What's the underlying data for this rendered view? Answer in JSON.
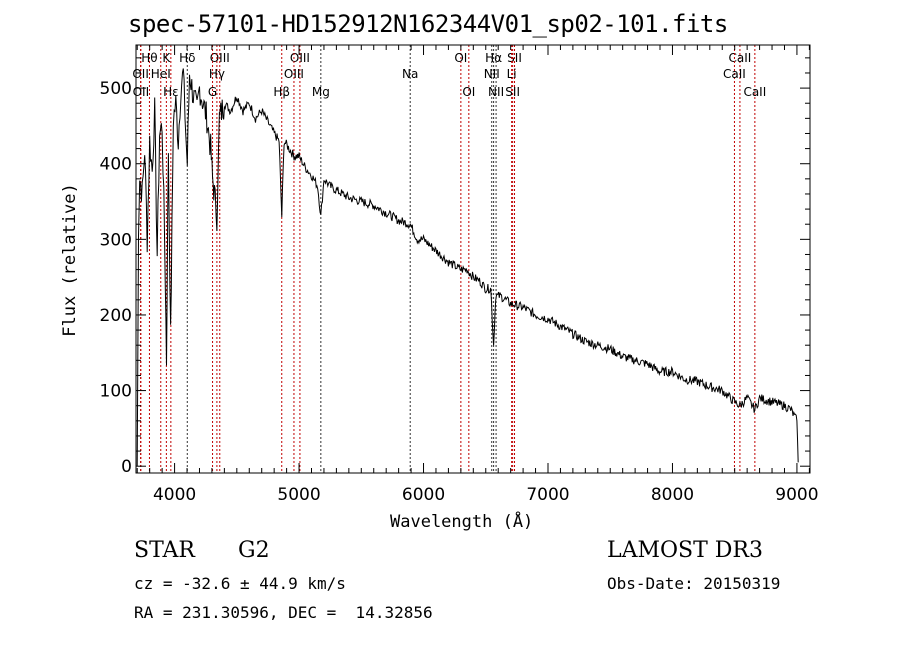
{
  "chart_data": {
    "type": "line",
    "title": "spec-57101-HD152912N162344V01_sp02-101.fits",
    "xlabel": "Wavelength (Å)",
    "ylabel": "Flux (relative)",
    "xlim": [
      3690,
      9105
    ],
    "ylim": [
      -9,
      557
    ],
    "xticks": [
      4000,
      5000,
      6000,
      7000,
      8000,
      9000
    ],
    "yticks": [
      0,
      100,
      200,
      300,
      400,
      500
    ],
    "grid": false,
    "series": [
      {
        "name": "flux",
        "x": [
          3700,
          3710,
          3720,
          3740,
          3760,
          3780,
          3800,
          3820,
          3840,
          3860,
          3880,
          3900,
          3920,
          3935,
          3950,
          3968,
          3990,
          4010,
          4030,
          4050,
          4070,
          4090,
          4102,
          4120,
          4150,
          4180,
          4200,
          4230,
          4260,
          4290,
          4305,
          4320,
          4340,
          4360,
          4400,
          4450,
          4500,
          4550,
          4600,
          4650,
          4700,
          4750,
          4800,
          4840,
          4861,
          4880,
          4920,
          4960,
          5000,
          5050,
          5100,
          5150,
          5175,
          5200,
          5250,
          5300,
          5400,
          5500,
          5600,
          5700,
          5800,
          5893,
          5950,
          6000,
          6100,
          6200,
          6250,
          6300,
          6350,
          6400,
          6450,
          6500,
          6540,
          6563,
          6580,
          6620,
          6700,
          6800,
          6900,
          7000,
          7100,
          7200,
          7300,
          7400,
          7500,
          7600,
          7700,
          7800,
          7900,
          8000,
          8100,
          8200,
          8300,
          8400,
          8498,
          8542,
          8600,
          8662,
          8700,
          8800,
          8900,
          8950,
          9000,
          9010
        ],
        "y": [
          0,
          320,
          380,
          360,
          420,
          300,
          430,
          390,
          470,
          280,
          440,
          450,
          300,
          140,
          420,
          170,
          460,
          480,
          430,
          500,
          520,
          440,
          400,
          520,
          490,
          470,
          500,
          480,
          460,
          420,
          380,
          360,
          330,
          460,
          480,
          470,
          490,
          470,
          480,
          460,
          470,
          455,
          440,
          430,
          330,
          430,
          420,
          410,
          410,
          395,
          385,
          370,
          330,
          380,
          370,
          365,
          355,
          350,
          345,
          335,
          325,
          320,
          300,
          300,
          285,
          270,
          265,
          260,
          260,
          250,
          245,
          235,
          235,
          160,
          225,
          225,
          215,
          210,
          200,
          195,
          185,
          175,
          165,
          160,
          155,
          145,
          140,
          135,
          125,
          125,
          115,
          112,
          105,
          100,
          85,
          80,
          90,
          75,
          90,
          85,
          80,
          75,
          60,
          5
        ]
      }
    ],
    "lines": [
      {
        "label": "Hθ",
        "wave": 3798,
        "row": 1,
        "color": "red"
      },
      {
        "label": "K",
        "wave": 3934,
        "row": 1,
        "color": "red"
      },
      {
        "label": "Hδ",
        "wave": 4102,
        "row": 1,
        "color": "black"
      },
      {
        "label": "OIII",
        "wave": 4363,
        "row": 1,
        "color": "red"
      },
      {
        "label": "OIII",
        "wave": 5007,
        "row": 1,
        "color": "red"
      },
      {
        "label": "OI",
        "wave": 6300,
        "row": 1,
        "color": "red"
      },
      {
        "label": "Hα",
        "wave": 6563,
        "row": 1,
        "color": "black"
      },
      {
        "label": "SII",
        "wave": 6731,
        "row": 1,
        "color": "red"
      },
      {
        "label": "CaII",
        "wave": 8542,
        "row": 1,
        "color": "red"
      },
      {
        "label": "OII",
        "wave": 3727,
        "row": 2,
        "color": "red"
      },
      {
        "label": "HeI",
        "wave": 3889,
        "row": 2,
        "color": "red"
      },
      {
        "label": "Hγ",
        "wave": 4340,
        "row": 2,
        "color": "red"
      },
      {
        "label": "OIII",
        "wave": 4959,
        "row": 2,
        "color": "red"
      },
      {
        "label": "Na",
        "wave": 5893,
        "row": 2,
        "color": "black"
      },
      {
        "label": "NII",
        "wave": 6548,
        "row": 2,
        "color": "black"
      },
      {
        "label": "Li",
        "wave": 6708,
        "row": 2,
        "color": "red"
      },
      {
        "label": "CaII",
        "wave": 8498,
        "row": 2,
        "color": "red"
      },
      {
        "label": "OII",
        "wave": 3729,
        "row": 3,
        "color": "red"
      },
      {
        "label": "Hε",
        "wave": 3970,
        "row": 3,
        "color": "red"
      },
      {
        "label": "G",
        "wave": 4305,
        "row": 3,
        "color": "red"
      },
      {
        "label": "Hβ",
        "wave": 4861,
        "row": 3,
        "color": "red"
      },
      {
        "label": "Mg",
        "wave": 5175,
        "row": 3,
        "color": "black"
      },
      {
        "label": "OI",
        "wave": 6364,
        "row": 3,
        "color": "red"
      },
      {
        "label": "NII",
        "wave": 6583,
        "row": 3,
        "color": "black"
      },
      {
        "label": "SII",
        "wave": 6716,
        "row": 3,
        "color": "red"
      },
      {
        "label": "CaII",
        "wave": 8662,
        "row": 3,
        "color": "red"
      }
    ]
  },
  "info": {
    "class": "STAR",
    "subclass": "G2",
    "survey": "LAMOST DR3",
    "cz": "cz = -32.6 ± 44.9 km/s",
    "obs_date": "Obs-Date: 20150319",
    "radec": "RA = 231.30596, DEC =  14.32856"
  }
}
